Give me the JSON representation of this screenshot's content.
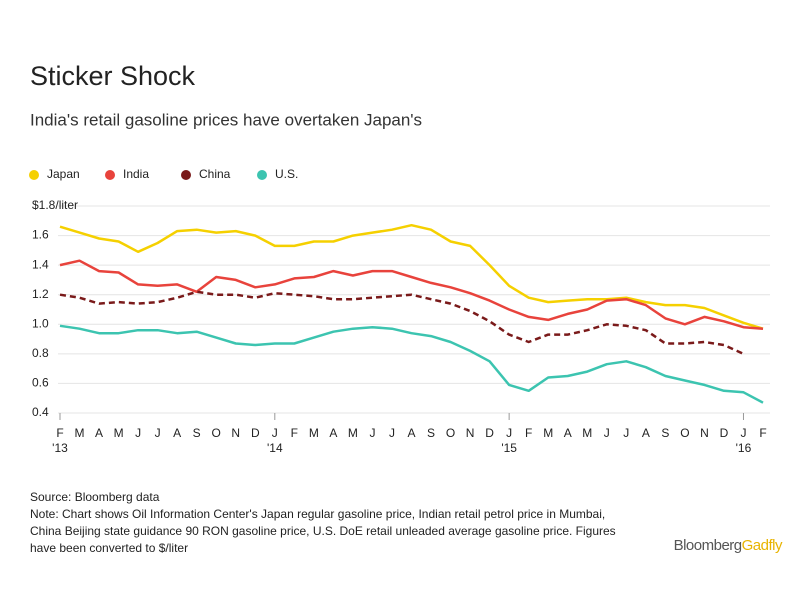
{
  "chart_data": {
    "type": "line",
    "title": "Sticker Shock",
    "subtitle": "India's retail gasoline prices have overtaken Japan's",
    "categories": [
      "F",
      "M",
      "A",
      "M",
      "J",
      "J",
      "A",
      "S",
      "O",
      "N",
      "D",
      "J",
      "F",
      "M",
      "A",
      "M",
      "J",
      "J",
      "A",
      "S",
      "O",
      "N",
      "D",
      "J",
      "F",
      "M",
      "A",
      "M",
      "J",
      "J",
      "A",
      "S",
      "O",
      "N",
      "D",
      "J",
      "F"
    ],
    "x_year_labels": [
      "'13",
      null,
      null,
      null,
      null,
      null,
      null,
      null,
      null,
      null,
      null,
      "'14",
      null,
      null,
      null,
      null,
      null,
      null,
      null,
      null,
      null,
      null,
      null,
      "'15",
      null,
      null,
      null,
      null,
      null,
      null,
      null,
      null,
      null,
      null,
      null,
      "'16",
      null
    ],
    "series": [
      {
        "name": "Japan",
        "color": "#f5d000",
        "dashed": false,
        "values": [
          1.66,
          1.62,
          1.58,
          1.56,
          1.49,
          1.55,
          1.63,
          1.64,
          1.62,
          1.63,
          1.6,
          1.53,
          1.53,
          1.56,
          1.56,
          1.6,
          1.62,
          1.64,
          1.67,
          1.64,
          1.56,
          1.53,
          1.4,
          1.26,
          1.18,
          1.15,
          1.16,
          1.17,
          1.17,
          1.18,
          1.15,
          1.13,
          1.13,
          1.11,
          1.06,
          1.01,
          0.97
        ]
      },
      {
        "name": "India",
        "color": "#e8433c",
        "dashed": false,
        "values": [
          1.4,
          1.43,
          1.36,
          1.35,
          1.27,
          1.26,
          1.27,
          1.22,
          1.32,
          1.3,
          1.25,
          1.27,
          1.31,
          1.32,
          1.36,
          1.33,
          1.36,
          1.36,
          1.32,
          1.28,
          1.25,
          1.21,
          1.16,
          1.1,
          1.05,
          1.03,
          1.07,
          1.1,
          1.16,
          1.17,
          1.13,
          1.04,
          1.0,
          1.05,
          1.02,
          0.98,
          0.97
        ]
      },
      {
        "name": "China",
        "color": "#7a1a1a",
        "dashed": true,
        "values": [
          1.2,
          1.18,
          1.14,
          1.15,
          1.14,
          1.15,
          1.18,
          1.22,
          1.2,
          1.2,
          1.18,
          1.21,
          1.2,
          1.19,
          1.17,
          1.17,
          1.18,
          1.19,
          1.2,
          1.17,
          1.14,
          1.09,
          1.02,
          0.93,
          0.88,
          0.93,
          0.93,
          0.96,
          1.0,
          0.99,
          0.96,
          0.87,
          0.87,
          0.88,
          0.86,
          0.8,
          null
        ]
      },
      {
        "name": "U.S.",
        "color": "#3cc4b0",
        "dashed": false,
        "values": [
          0.99,
          0.97,
          0.94,
          0.94,
          0.96,
          0.96,
          0.94,
          0.95,
          0.91,
          0.87,
          0.86,
          0.87,
          0.87,
          0.91,
          0.95,
          0.97,
          0.98,
          0.97,
          0.94,
          0.92,
          0.88,
          0.82,
          0.75,
          0.59,
          0.55,
          0.64,
          0.65,
          0.68,
          0.73,
          0.75,
          0.71,
          0.65,
          0.62,
          0.59,
          0.55,
          0.54,
          0.47
        ]
      }
    ],
    "ylim": [
      0.4,
      1.8
    ],
    "yticks": [
      0.4,
      0.6,
      0.8,
      {
        "value": 1,
        "label": "1.0"
      },
      1.2,
      1.4,
      1.6,
      {
        "value": 1.8,
        "label": "$1.8/liter"
      }
    ],
    "grid": true,
    "source": "Source: Bloomberg data",
    "note_lines": [
      "Note: Chart shows Oil Information Center's Japan regular gasoline price, Indian retail petrol price in Mumbai,",
      "China Beijing state guidance 90 RON gasoline price, U.S. DoE retail unleaded average gasoline price. Figures",
      "have been converted to $/liter"
    ],
    "brand": {
      "name": "Bloomberg",
      "product": "Gadfly"
    }
  }
}
